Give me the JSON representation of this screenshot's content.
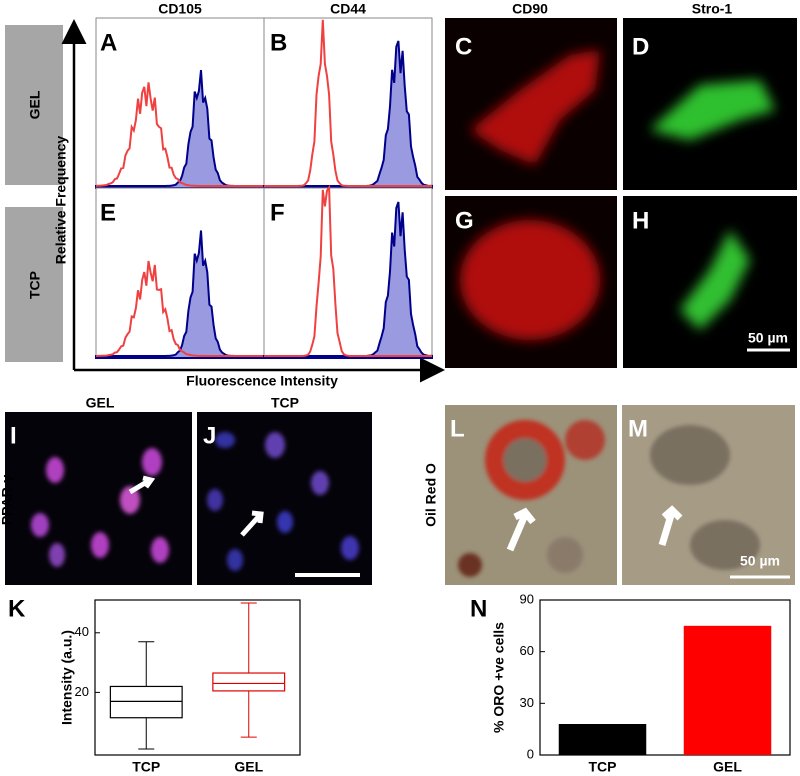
{
  "panels": [
    "A",
    "B",
    "C",
    "D",
    "E",
    "F",
    "G",
    "H",
    "I",
    "J",
    "K",
    "L",
    "M",
    "N"
  ],
  "headers": [
    "CD105",
    "CD44",
    "CD90",
    "Stro-1"
  ],
  "row_labels": [
    "GEL",
    "TCP"
  ],
  "flow_axes": {
    "y": "Relative Frequency",
    "x": "Fluorescence Intensity"
  },
  "scale_bars": [
    "50 µm",
    "50 µm"
  ],
  "ppar": {
    "label": "PPAR-γ",
    "columns": [
      "GEL",
      "TCP"
    ]
  },
  "oil_label": "Oil Red O",
  "chart_data": [
    {
      "type": "box",
      "ylabel": "Intensity (a.u.)",
      "categories": [
        "TCP",
        "GEL"
      ],
      "boxes": [
        {
          "min": 1,
          "q1": 11.5,
          "median": 17,
          "q3": 22,
          "max": 37
        },
        {
          "min": 5,
          "q1": 20.5,
          "median": 23,
          "q3": 26.5,
          "max": 50
        }
      ],
      "colors": [
        "#000000",
        "#e00000"
      ],
      "ylim": [
        -1,
        51
      ],
      "yticks": [
        20,
        40
      ]
    },
    {
      "type": "bar",
      "ylabel": "% ORO +ve cells",
      "categories": [
        "TCP",
        "GEL"
      ],
      "values": [
        18,
        75
      ],
      "colors": [
        "#000000",
        "#ff0000"
      ],
      "ylim": [
        0,
        90
      ],
      "yticks": [
        0,
        30,
        60,
        90
      ]
    }
  ]
}
